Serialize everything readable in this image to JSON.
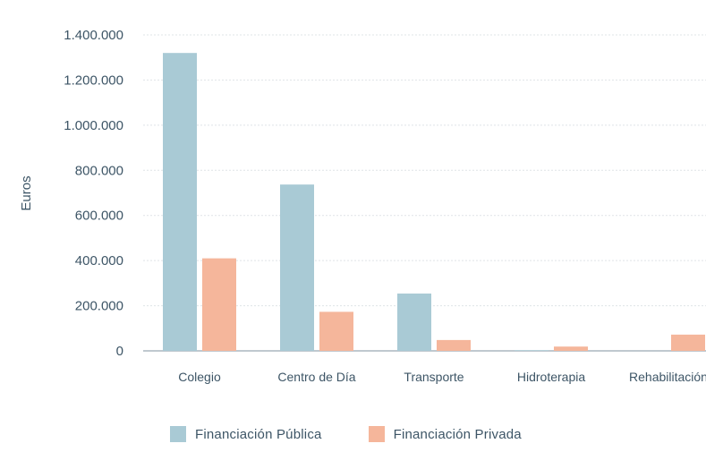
{
  "chart_data": {
    "type": "bar",
    "categories": [
      "Colegio",
      "Centro de Día",
      "Transporte",
      "Hidroterapia",
      "Rehabilitación"
    ],
    "series": [
      {
        "name": "Financiación Pública",
        "values": [
          1320000,
          737000,
          254000,
          3000,
          0
        ],
        "color": "#a9cad5"
      },
      {
        "name": "Financiación Privada",
        "values": [
          410000,
          173000,
          48000,
          19000,
          72000
        ],
        "color": "#f5b69b"
      }
    ],
    "ylabel": "Euros",
    "xlabel": "",
    "title": "",
    "ylim": [
      0,
      1400000
    ],
    "yticks": [
      0,
      200000,
      400000,
      600000,
      800000,
      1000000,
      1200000,
      1400000
    ],
    "ytick_labels": [
      "0",
      "200.000",
      "400.000",
      "600.000",
      "800.000",
      "1.000.000",
      "1.200.000",
      "1.400.000"
    ],
    "grid": true,
    "legend_position": "bottom"
  }
}
